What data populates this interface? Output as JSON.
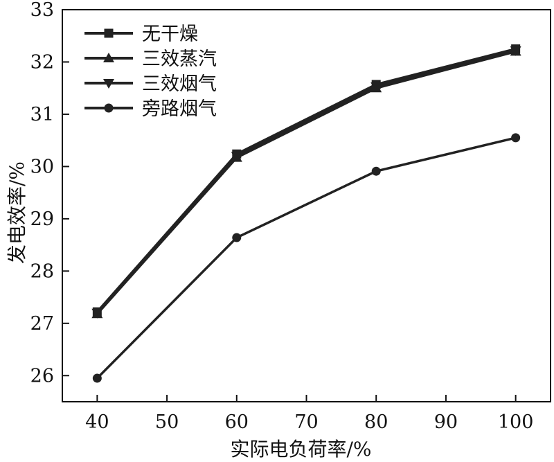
{
  "chart_data": {
    "type": "line",
    "title": "",
    "xlabel": "实际电负荷率/%",
    "ylabel": "发电效率/%",
    "x": [
      40,
      60,
      80,
      100
    ],
    "xlim": [
      35,
      105
    ],
    "ylim": [
      25.5,
      33
    ],
    "xticks": [
      40,
      50,
      60,
      70,
      80,
      90,
      100
    ],
    "yticks": [
      26,
      27,
      28,
      29,
      30,
      31,
      32,
      33
    ],
    "grid": false,
    "legend_position": "top-left",
    "line_color": "#222222",
    "series": [
      {
        "name": "无干燥",
        "marker": "square",
        "values": [
          27.22,
          30.24,
          31.57,
          32.25
        ]
      },
      {
        "name": "三效蒸汽",
        "marker": "triangle-up",
        "values": [
          27.18,
          30.17,
          31.5,
          32.2
        ]
      },
      {
        "name": "三效烟气",
        "marker": "triangle-down",
        "values": [
          27.2,
          30.2,
          31.53,
          32.22
        ]
      },
      {
        "name": "旁路烟气",
        "marker": "circle",
        "values": [
          25.95,
          28.64,
          29.91,
          30.55
        ]
      }
    ]
  }
}
